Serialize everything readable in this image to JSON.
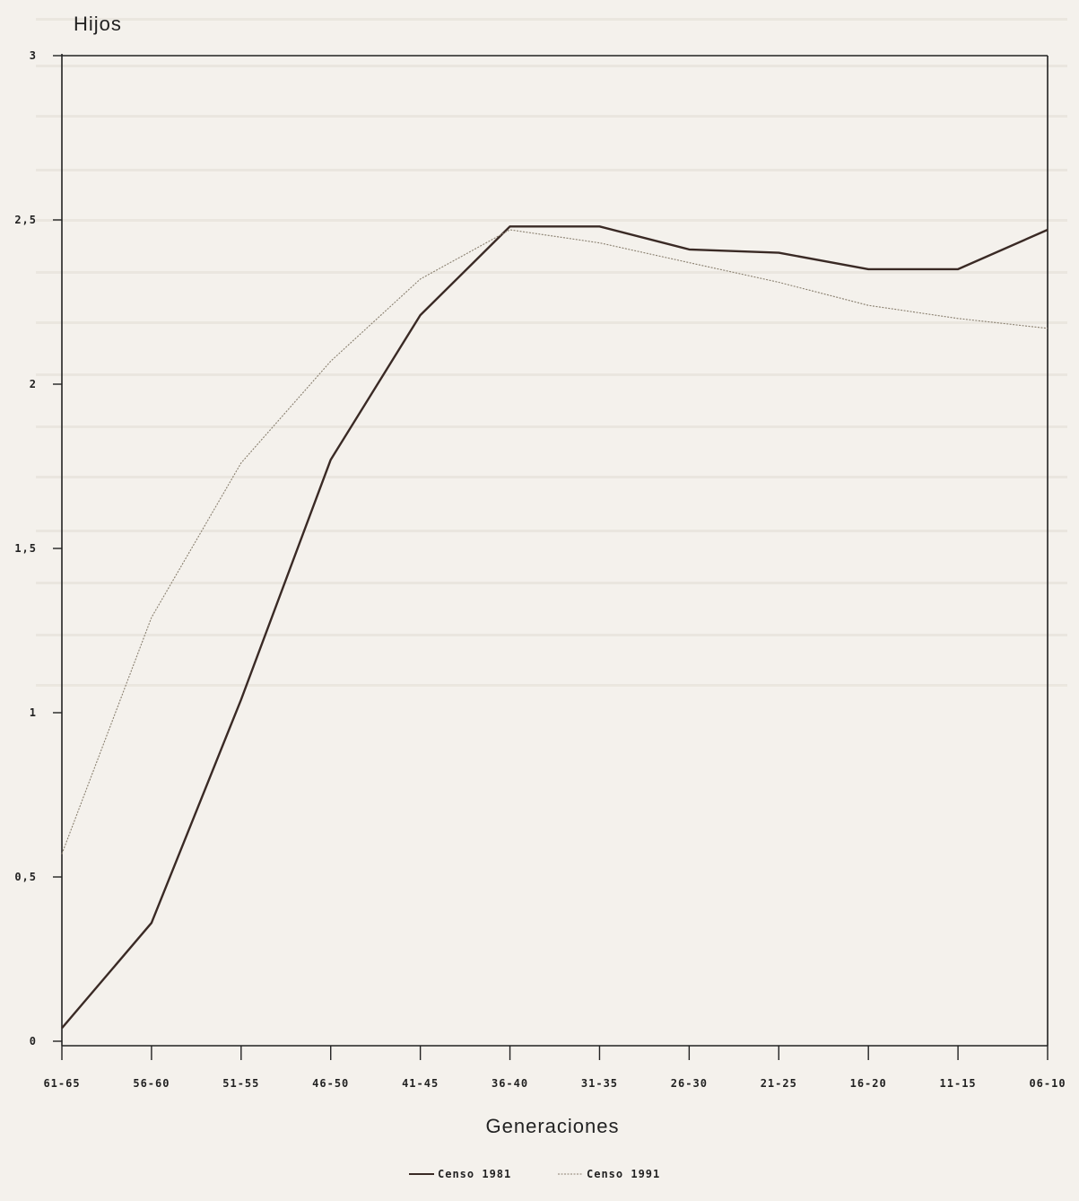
{
  "chart_data": {
    "type": "line",
    "ylabel": "Hijos",
    "xlabel": "Generaciones",
    "categories": [
      "61-65",
      "56-60",
      "51-55",
      "46-50",
      "41-45",
      "36-40",
      "31-35",
      "26-30",
      "21-25",
      "16-20",
      "11-15",
      "06-10"
    ],
    "y_ticks": [
      "0",
      "0,5",
      "1",
      "1,5",
      "2",
      "2,5",
      "3"
    ],
    "y_tick_values": [
      0,
      0.5,
      1,
      1.5,
      2,
      2.5,
      3
    ],
    "ylim": [
      0,
      3
    ],
    "grid": false,
    "legend_position": "bottom-center",
    "series": [
      {
        "name": "Censo 1981",
        "color": "#3a2a25",
        "values": [
          0.04,
          0.36,
          1.04,
          1.77,
          2.21,
          2.48,
          2.48,
          2.41,
          2.4,
          2.35,
          2.35,
          2.47
        ]
      },
      {
        "name": "Censo 1991",
        "color": "#8a8070",
        "values": [
          0.57,
          1.29,
          1.76,
          2.07,
          2.32,
          2.47,
          2.43,
          2.37,
          2.31,
          2.24,
          2.2,
          2.17
        ]
      }
    ]
  }
}
